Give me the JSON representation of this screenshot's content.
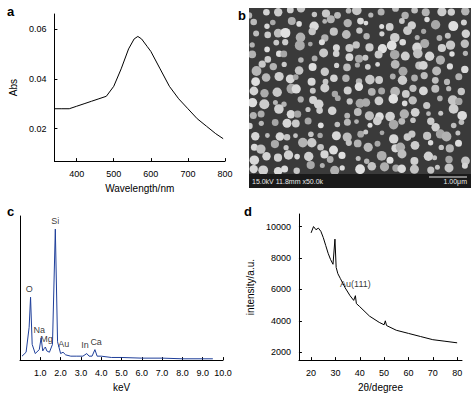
{
  "chart_data": [
    {
      "panel": "a",
      "type": "line",
      "color": "#000000",
      "x_label": "Wavelength/nm",
      "y_label": "Abs",
      "x": [
        340,
        360,
        380,
        400,
        420,
        440,
        460,
        480,
        500,
        520,
        540,
        555,
        565,
        575,
        590,
        600,
        625,
        650,
        675,
        700,
        725,
        750,
        775,
        795
      ],
      "values": [
        0.028,
        0.028,
        0.028,
        0.029,
        0.03,
        0.031,
        0.032,
        0.033,
        0.037,
        0.044,
        0.052,
        0.056,
        0.057,
        0.056,
        0.053,
        0.051,
        0.044,
        0.037,
        0.032,
        0.028,
        0.024,
        0.021,
        0.018,
        0.016
      ],
      "xlim": [
        340,
        800
      ],
      "xticks": [
        400,
        500,
        600,
        700,
        800
      ],
      "ylim": [
        0.007,
        0.066
      ],
      "yticks": [
        0.02,
        0.04,
        0.06
      ],
      "grid": false
    },
    {
      "panel": "c",
      "type": "line",
      "color": "#1f3f9a",
      "x_label": "keV",
      "x": [
        0.1,
        0.3,
        0.45,
        0.52,
        0.6,
        0.75,
        0.95,
        1.04,
        1.12,
        1.2,
        1.25,
        1.32,
        1.45,
        1.6,
        1.74,
        1.85,
        2.0,
        2.12,
        2.25,
        2.5,
        2.8,
        3.1,
        3.29,
        3.4,
        3.55,
        3.69,
        3.8,
        4.0,
        4.5,
        5.0,
        6.0,
        7.0,
        8.0,
        9.0,
        9.5
      ],
      "values": [
        3,
        6,
        25,
        48,
        12,
        5,
        8,
        17,
        7,
        9,
        10,
        7,
        6,
        12,
        100,
        14,
        5,
        6,
        4,
        3,
        3,
        3,
        5,
        3,
        3,
        8,
        3,
        3,
        2,
        2,
        1.5,
        1.5,
        1,
        1,
        1
      ],
      "xlim": [
        0,
        10
      ],
      "xticks": [
        {
          "value": 1,
          "label": "1.0"
        },
        {
          "value": 2,
          "label": "2.0"
        },
        {
          "value": 3,
          "label": "3.0"
        },
        {
          "value": 4,
          "label": "4.0"
        },
        {
          "value": 5,
          "label": "5.0"
        },
        {
          "value": 6,
          "label": "6.0"
        },
        {
          "value": 7,
          "label": "7.0"
        },
        {
          "value": 8,
          "label": "8.0"
        },
        {
          "value": 9,
          "label": "9.0"
        },
        {
          "value": 10,
          "label": "10.0"
        }
      ],
      "ylim": [
        0,
        110
      ],
      "tick_labels": "x",
      "grid": false,
      "annotations": [
        {
          "text": "O",
          "x": 0.45,
          "y": 50
        },
        {
          "text": "Na",
          "x": 0.95,
          "y": 19
        },
        {
          "text": "Mg",
          "x": 1.3,
          "y": 12
        },
        {
          "text": "Si",
          "x": 1.74,
          "y": 102
        },
        {
          "text": "Au",
          "x": 2.15,
          "y": 8
        },
        {
          "text": "In",
          "x": 3.2,
          "y": 7
        },
        {
          "text": "Ca",
          "x": 3.75,
          "y": 10
        }
      ]
    },
    {
      "panel": "d",
      "type": "line",
      "color": "#000000",
      "x_label": "2θ/degree",
      "y_label": "intensity/a.u.",
      "x": [
        20,
        21,
        22,
        23,
        24,
        25,
        26,
        27,
        28,
        29,
        29.8,
        30.3,
        31,
        32,
        34,
        36,
        37.5,
        38.2,
        38.6,
        40,
        44,
        48,
        50,
        50.5,
        51,
        55,
        60,
        65,
        70,
        75,
        80
      ],
      "values": [
        9600,
        10000,
        9800,
        9900,
        9700,
        9300,
        8800,
        8300,
        7900,
        7600,
        9200,
        7400,
        7000,
        6700,
        6100,
        5600,
        5300,
        5600,
        5100,
        4900,
        4300,
        3900,
        3750,
        4000,
        3700,
        3400,
        3200,
        3000,
        2800,
        2700,
        2600
      ],
      "xlim": [
        15,
        82
      ],
      "xticks": [
        20,
        30,
        40,
        50,
        60,
        70,
        80
      ],
      "ylim": [
        1500,
        10800
      ],
      "yticks": [
        2000,
        4000,
        6000,
        8000,
        10000
      ],
      "grid": false,
      "annotations": [
        {
          "text": "Au(111)",
          "x": 38.2,
          "y": 6000
        }
      ]
    }
  ],
  "image_panel": {
    "panel": "b",
    "caption": "15.0kV 11.8mm x50.0k",
    "scale_bar": "1.00μm"
  }
}
